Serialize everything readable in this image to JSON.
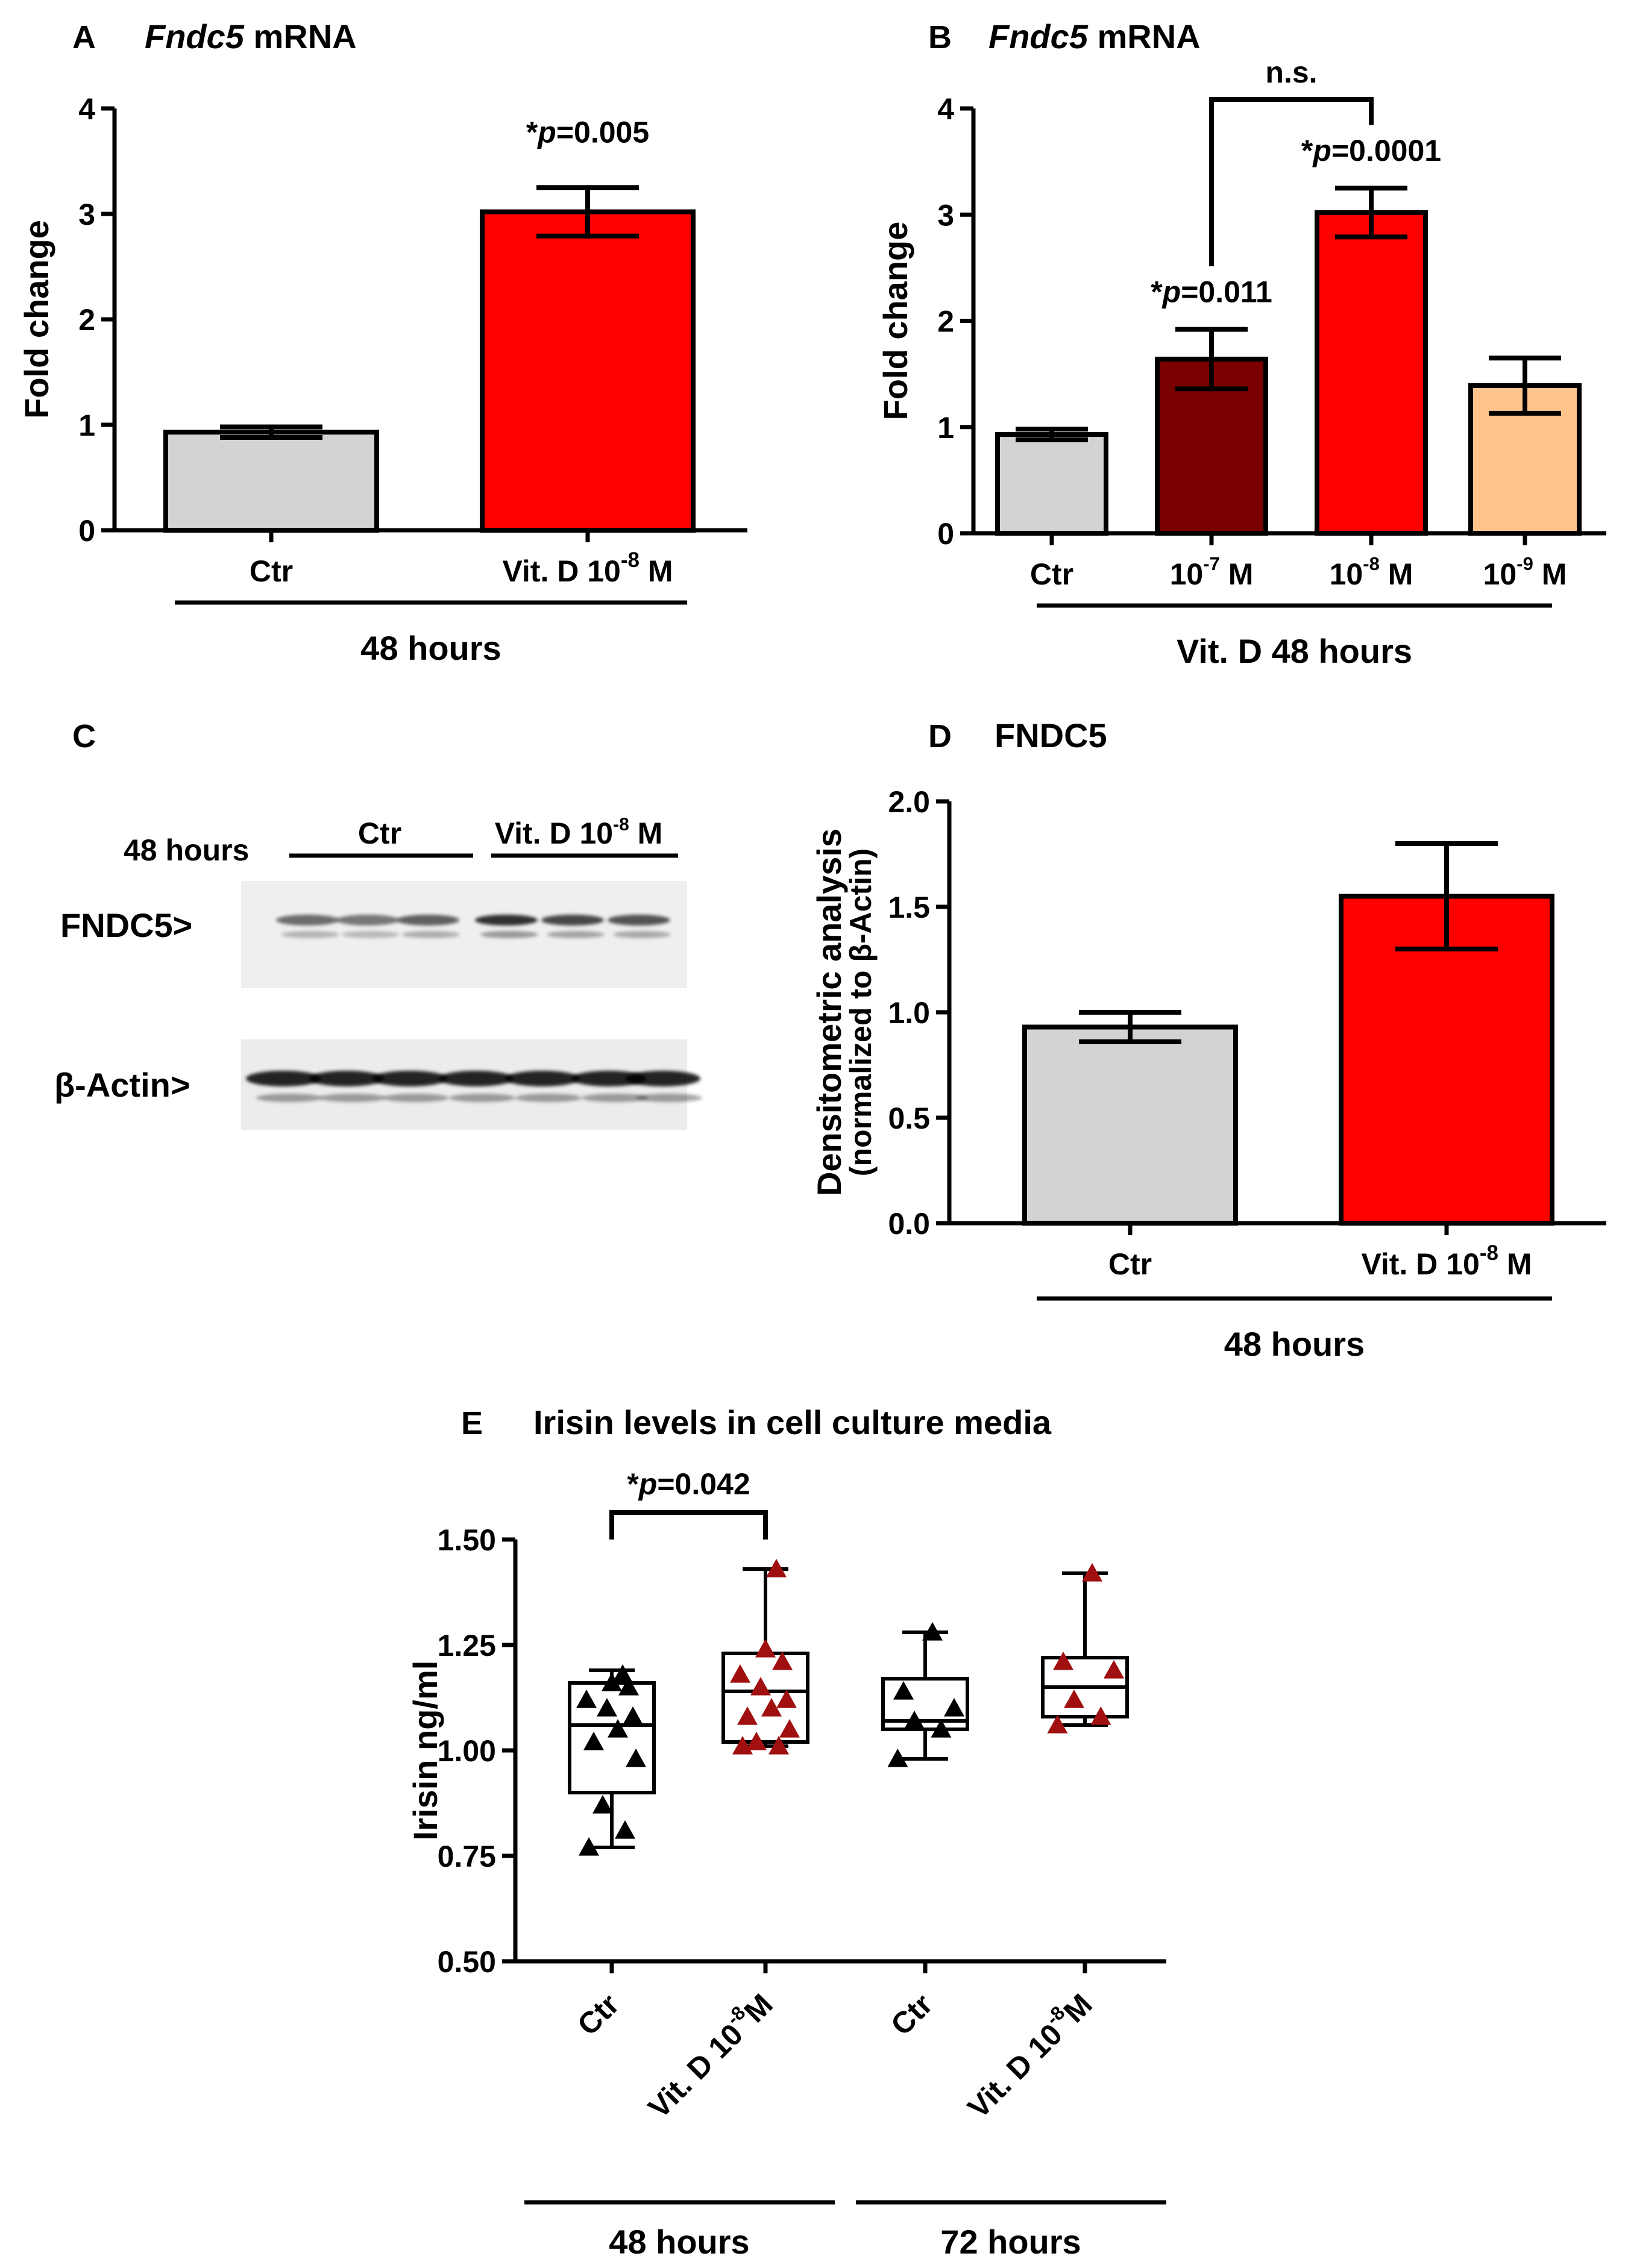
{
  "chart_data": [
    {
      "panel": "A",
      "type": "bar",
      "title": "Fndc5 mRNA",
      "title_italic_part": "Fndc5",
      "title_rest": " mRNA",
      "ylabel": "Fold change",
      "ylim": [
        0,
        4
      ],
      "yticks": [
        "0",
        "1",
        "2",
        "3",
        "4"
      ],
      "categories": [
        {
          "main": "Ctr",
          "sup": "",
          "after": ""
        },
        {
          "main": "Vit. D 10",
          "sup": "-8",
          "after": " M"
        }
      ],
      "values": [
        0.93,
        3.02
      ],
      "errors": [
        0.05,
        0.23
      ],
      "colors": [
        "#d3d3d3",
        "#ff0000"
      ],
      "annotations": [
        {
          "index": 1,
          "star": "*",
          "p": "p",
          "text": "=0.005"
        }
      ],
      "group_label": "48 hours"
    },
    {
      "panel": "B",
      "type": "bar",
      "title_italic_part": "Fndc5",
      "title_rest": " mRNA",
      "ylabel": "Fold change",
      "ylim": [
        0,
        4
      ],
      "yticks": [
        "0",
        "1",
        "2",
        "3",
        "4"
      ],
      "categories": [
        {
          "main": "Ctr",
          "sup": "",
          "after": ""
        },
        {
          "main": "10",
          "sup": "-7",
          "after": " M"
        },
        {
          "main": "10",
          "sup": "-8",
          "after": " M"
        },
        {
          "main": "10",
          "sup": "-9",
          "after": " M"
        }
      ],
      "values": [
        0.93,
        1.64,
        3.02,
        1.39
      ],
      "errors": [
        0.05,
        0.28,
        0.23,
        0.26
      ],
      "colors": [
        "#d3d3d3",
        "#7a0000",
        "#ff0000",
        "#ffc48c"
      ],
      "annotations": [
        {
          "index": 1,
          "star": "*",
          "p": "p",
          "text": "=0.011"
        },
        {
          "index": 2,
          "star": "*",
          "p": "p",
          "text": "=0.0001"
        }
      ],
      "bracket_label": "n.s.",
      "group_label": "Vit. D 48 hours"
    },
    {
      "panel": "D",
      "type": "bar",
      "title": "FNDC5",
      "ylabel": "Densitometric analysis",
      "ylabel_sub": "(normalized to β-Actin)",
      "ylim": [
        0,
        2
      ],
      "yticks": [
        "0.0",
        "0.5",
        "1.0",
        "1.5",
        "2.0"
      ],
      "categories": [
        {
          "main": "Ctr",
          "sup": "",
          "after": ""
        },
        {
          "main": "Vit. D 10",
          "sup": "-8",
          "after": " M"
        }
      ],
      "values": [
        0.93,
        1.55
      ],
      "errors": [
        0.07,
        0.25
      ],
      "colors": [
        "#d3d3d3",
        "#ff0000"
      ],
      "group_label": "48 hours"
    },
    {
      "panel": "E",
      "type": "box",
      "title": "Irisin levels in cell culture media",
      "ylabel": "Irisin ng/ml",
      "ylim": [
        0.5,
        1.5
      ],
      "yticks": [
        "0.50",
        "0.75",
        "1.00",
        "1.25",
        "1.50"
      ],
      "categories": [
        {
          "main": "Ctr",
          "sup": "",
          "after": ""
        },
        {
          "main": "Vit. D 10",
          "sup": "-8",
          "after": "M"
        },
        {
          "main": "Ctr",
          "sup": "",
          "after": ""
        },
        {
          "main": "Vit. D 10",
          "sup": "-8",
          "after": "M"
        }
      ],
      "boxes": [
        {
          "min": 0.77,
          "q1": 0.9,
          "median": 1.06,
          "q3": 1.16,
          "max": 1.19,
          "color": "#000000",
          "points": [
            0.77,
            0.81,
            0.87,
            0.98,
            1.02,
            1.05,
            1.08,
            1.1,
            1.12,
            1.15,
            1.16,
            1.18
          ]
        },
        {
          "min": 1.01,
          "q1": 1.02,
          "median": 1.14,
          "q3": 1.23,
          "max": 1.43,
          "color": "#a01010",
          "points": [
            1.01,
            1.01,
            1.02,
            1.05,
            1.08,
            1.1,
            1.12,
            1.15,
            1.18,
            1.21,
            1.24,
            1.43
          ]
        },
        {
          "min": 0.98,
          "q1": 1.05,
          "median": 1.07,
          "q3": 1.17,
          "max": 1.28,
          "color": "#000000",
          "points": [
            0.98,
            1.05,
            1.07,
            1.1,
            1.14,
            1.28
          ]
        },
        {
          "min": 1.06,
          "q1": 1.08,
          "median": 1.15,
          "q3": 1.22,
          "max": 1.42,
          "color": "#a01010",
          "points": [
            1.06,
            1.08,
            1.12,
            1.19,
            1.21,
            1.42
          ]
        }
      ],
      "annotation": {
        "star": "*",
        "p": "p",
        "text": "=0.042"
      },
      "groups": [
        "48 hours",
        "72 hours"
      ]
    }
  ],
  "blot": {
    "panel": "C",
    "time_label": "48 hours",
    "group_left": "Ctr",
    "group_right_main": "Vit. D 10",
    "group_right_sup": "-8",
    "group_right_after": " M",
    "row1": "FNDC5>",
    "row2": "β-Actin>"
  }
}
